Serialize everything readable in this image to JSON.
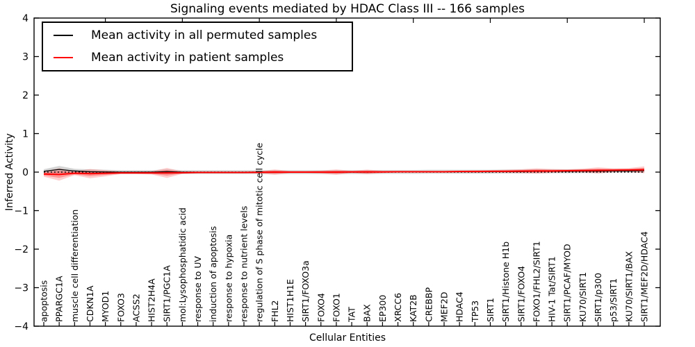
{
  "chart_data": {
    "type": "line",
    "title": "Signaling events mediated by HDAC Class III -- 166 samples",
    "xlabel": "Cellular Entities",
    "ylabel": "Inferred Activity",
    "ylim": [
      -4,
      4
    ],
    "yticks": [
      -4,
      -3,
      -2,
      -1,
      0,
      1,
      2,
      3,
      4
    ],
    "grid": false,
    "zero_line_style": "dotted",
    "legend_position": "upper left",
    "categories": [
      "apoptosis",
      "PPARGC1A",
      "muscle cell differentiation",
      "CDKN1A",
      "MYOD1",
      "FOXO3",
      "ACSS2",
      "HIST2H4A",
      "SIRT1/PGC1A",
      "mol:Lysophosphatidic acid",
      "response to UV",
      "induction of apoptosis",
      "response to hypoxia",
      "response to nutrient levels",
      "regulation of S phase of mitotic cell cycle",
      "FHL2",
      "HIST1H1E",
      "SIRT1/FOXO3a",
      "FOXO4",
      "FOXO1",
      "TAT",
      "BAX",
      "EP300",
      "XRCC6",
      "KAT2B",
      "CREBBP",
      "MEF2D",
      "HDAC4",
      "TP53",
      "SIRT1",
      "SIRT1/Histone H1b",
      "SIRT1/FOXO4",
      "FOXO1/FHL2/SIRT1",
      "HIV-1 Tat/SIRT1",
      "SIRT1/PCAF/MYOD",
      "KU70/SIRT1",
      "SIRT1/p300",
      "p53/SIRT1",
      "KU70/SIRT1/BAX",
      "SIRT1/MEF2D/HDAC4"
    ],
    "series": [
      {
        "name": "Mean activity in all permuted samples",
        "color": "#000000",
        "band_color": "#b0b0b0",
        "band_opacity": 0.55,
        "values": [
          0.02,
          0.07,
          0.03,
          0.01,
          0.005,
          0,
          0,
          0,
          0.01,
          0,
          0,
          0,
          0,
          0,
          0,
          0,
          0,
          0,
          0,
          0,
          0,
          0,
          0.005,
          0.005,
          0.005,
          0.01,
          0.01,
          0.01,
          0.01,
          0.01,
          0.015,
          0.015,
          0.02,
          0.02,
          0.02,
          0.025,
          0.025,
          0.03,
          0.03,
          0.04
        ],
        "band_halfwidth": [
          0.055,
          0.09,
          0.055,
          0.06,
          0.055,
          0.05,
          0.05,
          0.05,
          0.06,
          0.05,
          0.05,
          0.05,
          0.05,
          0.05,
          0.05,
          0.05,
          0.05,
          0.05,
          0.05,
          0.05,
          0.05,
          0.05,
          0.05,
          0.05,
          0.05,
          0.05,
          0.05,
          0.05,
          0.05,
          0.05,
          0.05,
          0.05,
          0.05,
          0.05,
          0.05,
          0.05,
          0.05,
          0.05,
          0.05,
          0.055
        ]
      },
      {
        "name": "Mean activity in patient samples",
        "color": "#ff0000",
        "band_color": "#ff2020",
        "band_opacity": 0.22,
        "values": [
          -0.05,
          -0.06,
          -0.03,
          -0.04,
          -0.03,
          -0.02,
          -0.02,
          -0.02,
          -0.02,
          -0.015,
          -0.01,
          -0.01,
          -0.01,
          -0.01,
          -0.005,
          0,
          0,
          0,
          0,
          0,
          0.005,
          0.005,
          0.005,
          0.01,
          0.01,
          0.01,
          0.01,
          0.015,
          0.015,
          0.02,
          0.02,
          0.025,
          0.03,
          0.03,
          0.035,
          0.04,
          0.045,
          0.05,
          0.055,
          0.06
        ],
        "band_halfwidth": [
          0.07,
          0.16,
          0.05,
          0.12,
          0.08,
          0.03,
          0.03,
          0.04,
          0.13,
          0.03,
          0.02,
          0.02,
          0.02,
          0.02,
          0.03,
          0.07,
          0.03,
          0.03,
          0.04,
          0.07,
          0.03,
          0.06,
          0.03,
          0.02,
          0.02,
          0.02,
          0.02,
          0.02,
          0.03,
          0.03,
          0.04,
          0.05,
          0.07,
          0.05,
          0.04,
          0.05,
          0.08,
          0.05,
          0.05,
          0.09
        ]
      }
    ]
  },
  "legend": {
    "entries": [
      {
        "label": "Mean activity in all permuted samples",
        "color": "#000000"
      },
      {
        "label": "Mean activity in patient samples",
        "color": "#ff0000"
      }
    ]
  }
}
